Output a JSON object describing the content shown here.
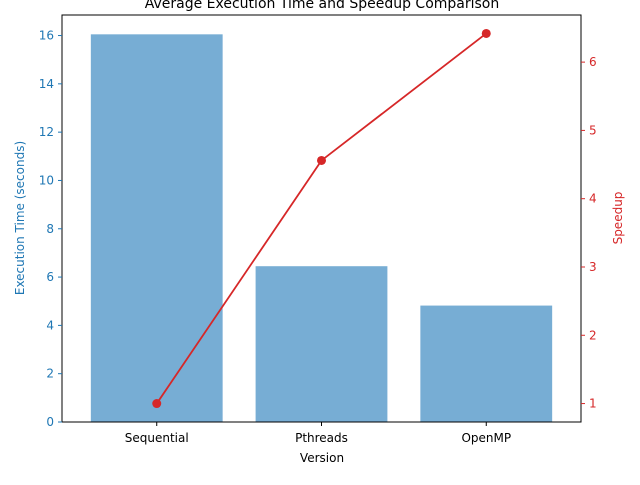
{
  "chart_data": {
    "type": "bar",
    "title": "Average Execution Time and Speedup Comparison",
    "xlabel": "Version",
    "categories": [
      "Sequential",
      "Pthreads",
      "OpenMP"
    ],
    "series": [
      {
        "name": "Execution Time (seconds)",
        "type": "bar",
        "axis": "left",
        "values": [
          16.05,
          6.45,
          4.82
        ],
        "color": "#77add4"
      },
      {
        "name": "Speedup",
        "type": "line",
        "axis": "right",
        "values": [
          1.0,
          4.56,
          6.42
        ],
        "color": "#d62728"
      }
    ],
    "ylabel_left": "Execution Time (seconds)",
    "ylabel_right": "Speedup",
    "ylim_left": [
      0,
      16.85
    ],
    "ylim_right": [
      0.73,
      6.69
    ],
    "yticks_left": [
      "0",
      "2",
      "4",
      "6",
      "8",
      "10",
      "12",
      "14",
      "16"
    ],
    "yticks_right": [
      "1",
      "2",
      "3",
      "4",
      "5",
      "6"
    ],
    "left_axis_color": "#1f77b4",
    "right_axis_color": "#d62728",
    "grid": false,
    "legend": "none"
  }
}
